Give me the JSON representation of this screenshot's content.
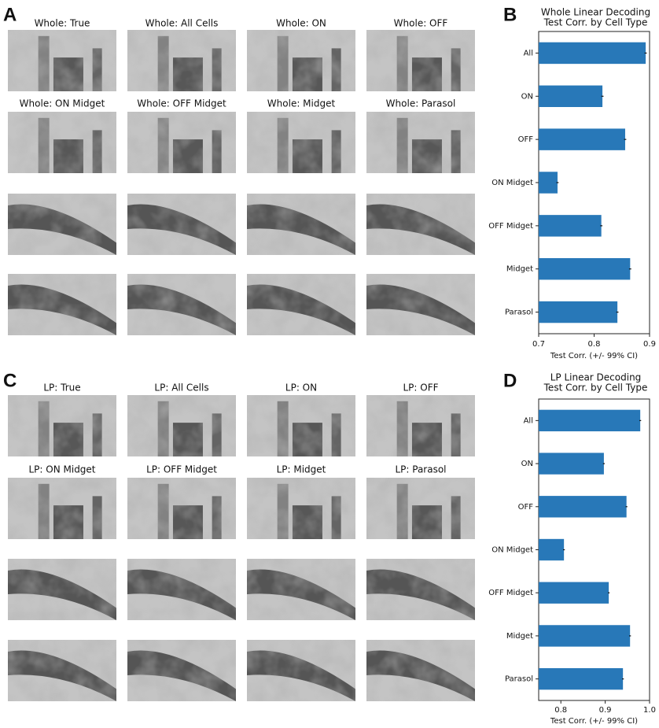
{
  "figure": {
    "grids": [
      {
        "label": "A",
        "titles": [
          [
            "Whole: True",
            "Whole: All Cells",
            "Whole: ON",
            "Whole: OFF"
          ],
          [
            "Whole: ON Midget",
            "Whole: OFF Midget",
            "Whole: Midget",
            "Whole: Parasol"
          ]
        ]
      },
      {
        "label": "C",
        "titles": [
          [
            "LP: True",
            "LP: All Cells",
            "LP: ON",
            "LP: OFF"
          ],
          [
            "LP: ON Midget",
            "LP: OFF Midget",
            "LP: Midget",
            "LP: Parasol"
          ]
        ]
      }
    ]
  },
  "chart_data": [
    {
      "type": "barh",
      "panel_label": "B",
      "title": [
        "Whole Linear Decoding",
        "Test Corr. by Cell Type"
      ],
      "xlabel": "Test Corr. (+/- 99% CI)",
      "categories": [
        "All",
        "ON",
        "OFF",
        "ON Midget",
        "OFF Midget",
        "Midget",
        "Parasol"
      ],
      "values": [
        0.893,
        0.815,
        0.856,
        0.734,
        0.813,
        0.865,
        0.842
      ],
      "errors": [
        0.002,
        0.002,
        0.002,
        0.002,
        0.002,
        0.002,
        0.002
      ],
      "color": "#2878b8",
      "xlim": [
        0.7,
        0.9
      ],
      "xticks": [
        0.7,
        0.8,
        0.9
      ]
    },
    {
      "type": "barh",
      "panel_label": "D",
      "title": [
        "LP Linear Decoding",
        "Test Corr. by Cell Type"
      ],
      "xlabel": "Test Corr. (+/- 99% CI)",
      "categories": [
        "All",
        "ON",
        "OFF",
        "ON Midget",
        "OFF Midget",
        "Midget",
        "Parasol"
      ],
      "values": [
        0.979,
        0.897,
        0.948,
        0.807,
        0.908,
        0.956,
        0.94
      ],
      "errors": [
        0.002,
        0.002,
        0.002,
        0.002,
        0.002,
        0.002,
        0.002
      ],
      "color": "#2878b8",
      "xlim": [
        0.75,
        1.0
      ],
      "xticks": [
        0.8,
        0.9,
        {
          "value": 1.0,
          "label": "1.0"
        }
      ]
    }
  ]
}
